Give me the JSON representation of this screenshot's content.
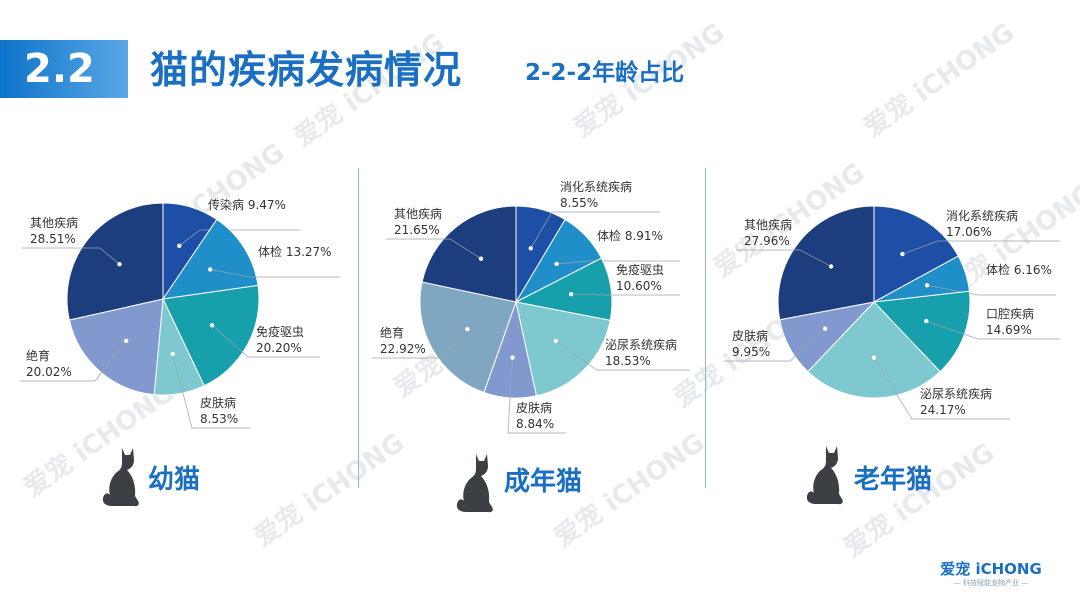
{
  "header": {
    "section_number": "2.2",
    "title": "猫的疾病发病情况",
    "subtitle": "2-2-2年龄占比"
  },
  "colors": {
    "dark_navy": "#1d3e7e",
    "blue": "#1e4fa6",
    "sky": "#208ec9",
    "teal": "#17a0ab",
    "light_teal": "#7ec9cf",
    "periwinkle": "#8199cf",
    "grey_blue": "#7fa7c2",
    "accent": "#1b6fc2"
  },
  "watermark": "爱宠 iCHONG",
  "logo": {
    "main": "爱宠 iCHONG",
    "sub": "— 科技赋能宠物产业 —"
  },
  "chart_data": [
    {
      "type": "pie",
      "title": "幼猫",
      "slices": [
        {
          "label": "传染病",
          "value": 9.47,
          "value_label": "9.47%",
          "color": "#1e4fa6"
        },
        {
          "label": "体检",
          "value": 13.27,
          "value_label": "13.27%",
          "color": "#208ec9"
        },
        {
          "label": "免疫驱虫",
          "value": 20.2,
          "value_label": "20.20%",
          "color": "#17a0ab"
        },
        {
          "label": "皮肤病",
          "value": 8.53,
          "value_label": "8.53%",
          "color": "#7ec9cf"
        },
        {
          "label": "绝育",
          "value": 20.02,
          "value_label": "20.02%",
          "color": "#8199cf"
        },
        {
          "label": "其他疾病",
          "value": 28.51,
          "value_label": "28.51%",
          "color": "#1d3e7e"
        }
      ]
    },
    {
      "type": "pie",
      "title": "成年猫",
      "slices": [
        {
          "label": "消化系统疾病",
          "value": 8.55,
          "value_label": "8.55%",
          "color": "#1e4fa6"
        },
        {
          "label": "体检",
          "value": 8.91,
          "value_label": "8.91%",
          "color": "#208ec9"
        },
        {
          "label": "免疫驱虫",
          "value": 10.6,
          "value_label": "10.60%",
          "color": "#17a0ab"
        },
        {
          "label": "泌尿系统疾病",
          "value": 18.53,
          "value_label": "18.53%",
          "color": "#7ec9cf"
        },
        {
          "label": "皮肤病",
          "value": 8.84,
          "value_label": "8.84%",
          "color": "#8199cf"
        },
        {
          "label": "绝育",
          "value": 22.92,
          "value_label": "22.92%",
          "color": "#7fa7c2"
        },
        {
          "label": "其他疾病",
          "value": 21.65,
          "value_label": "21.65%",
          "color": "#1d3e7e"
        }
      ]
    },
    {
      "type": "pie",
      "title": "老年猫",
      "slices": [
        {
          "label": "消化系统疾病",
          "value": 17.06,
          "value_label": "17.06%",
          "color": "#1e4fa6"
        },
        {
          "label": "体检",
          "value": 6.16,
          "value_label": "6.16%",
          "color": "#208ec9"
        },
        {
          "label": "口腔疾病",
          "value": 14.69,
          "value_label": "14.69%",
          "color": "#17a0ab"
        },
        {
          "label": "泌尿系统疾病",
          "value": 24.17,
          "value_label": "24.17%",
          "color": "#7ec9cf"
        },
        {
          "label": "皮肤病",
          "value": 9.95,
          "value_label": "9.95%",
          "color": "#8199cf"
        },
        {
          "label": "其他疾病",
          "value": 27.96,
          "value_label": "27.96%",
          "color": "#1d3e7e"
        }
      ]
    }
  ]
}
